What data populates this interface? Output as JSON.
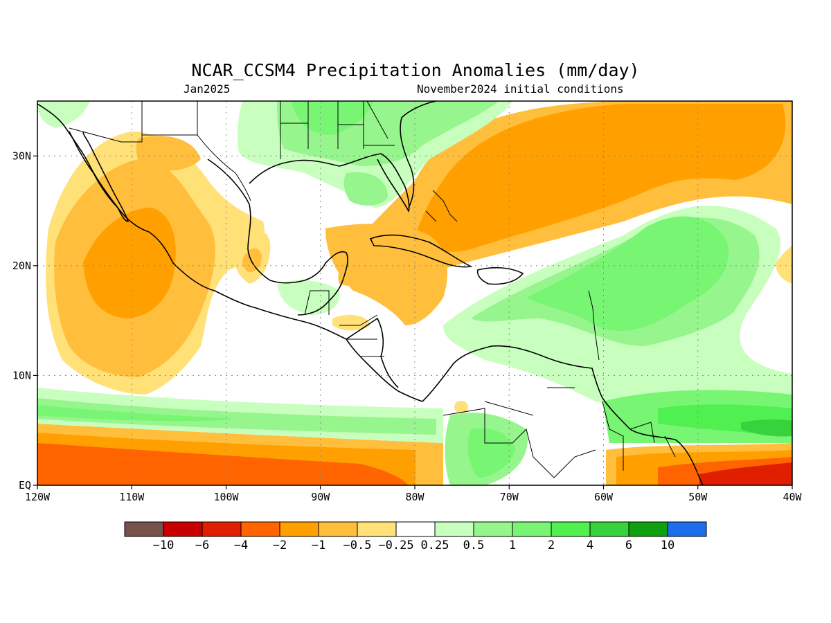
{
  "title": "NCAR_CCSM4 Precipitation Anomalies (mm/day)",
  "subtitle_left": "Jan2025",
  "subtitle_right": "November2024 initial conditions",
  "map": {
    "lon_range": [
      -120,
      -40
    ],
    "lat_range": [
      0,
      35
    ],
    "lon_ticks": [
      {
        "v": -120,
        "label": "120W"
      },
      {
        "v": -110,
        "label": "110W"
      },
      {
        "v": -100,
        "label": "100W"
      },
      {
        "v": -90,
        "label": "90W"
      },
      {
        "v": -80,
        "label": "80W"
      },
      {
        "v": -70,
        "label": "70W"
      },
      {
        "v": -60,
        "label": "60W"
      },
      {
        "v": -50,
        "label": "50W"
      },
      {
        "v": -40,
        "label": "40W"
      }
    ],
    "lat_ticks": [
      {
        "v": 0,
        "label": "EQ"
      },
      {
        "v": 10,
        "label": "10N"
      },
      {
        "v": 20,
        "label": "20N"
      },
      {
        "v": 30,
        "label": "30N"
      }
    ],
    "grid": true
  },
  "colorbar": {
    "colors": [
      "#76524a",
      "#c80000",
      "#e01e00",
      "#ff6400",
      "#ffa000",
      "#ffbe3c",
      "#ffe178",
      "#ffffff",
      "#c8ffbe",
      "#96f58c",
      "#78f573",
      "#50f050",
      "#37d23c",
      "#0fa00f",
      "#1e6eeb"
    ],
    "labels": [
      "-10",
      "-6",
      "-4",
      "-2",
      "-1",
      "-0.5",
      "-0.25",
      "0.25",
      "0.5",
      "1",
      "2",
      "4",
      "6",
      "10"
    ]
  }
}
